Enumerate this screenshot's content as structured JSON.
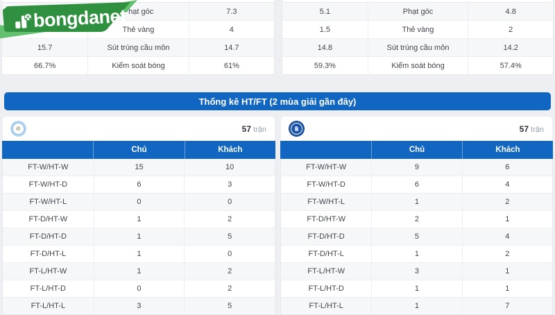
{
  "brand": {
    "name": "bongdanet"
  },
  "colors": {
    "primary_blue": "#1166c2",
    "brand_green": "#2f9140",
    "brand_green_light": "#62c06f",
    "alt_row": "#f6f7f9"
  },
  "top_stats": {
    "left_rows": [
      [
        "",
        "Phạt góc",
        "7.3"
      ],
      [
        "",
        "Thẻ vàng",
        "4"
      ],
      [
        "15.7",
        "Sút trúng cầu môn",
        "14.7"
      ],
      [
        "66.7%",
        "Kiểm soát bóng",
        "61%"
      ]
    ],
    "right_rows": [
      [
        "5.1",
        "Phạt góc",
        "4.8"
      ],
      [
        "1.5",
        "Thẻ vàng",
        "2"
      ],
      [
        "14.8",
        "Sút trúng cầu môn",
        "14.2"
      ],
      [
        "59.3%",
        "Kiểm soát bóng",
        "57.4%"
      ]
    ]
  },
  "htft": {
    "title": "Thống kê HT/FT (2 mùa giải gần đây)",
    "headers": {
      "home": "Chủ",
      "away": "Khách"
    },
    "teams": [
      {
        "badge": "manchester-city",
        "matches": "57",
        "matches_label": "trận",
        "rows": [
          [
            "FT-W/HT-W",
            "15",
            "10"
          ],
          [
            "FT-W/HT-D",
            "6",
            "3"
          ],
          [
            "FT-W/HT-L",
            "0",
            "0"
          ],
          [
            "FT-D/HT-W",
            "1",
            "2"
          ],
          [
            "FT-D/HT-D",
            "1",
            "5"
          ],
          [
            "FT-D/HT-L",
            "1",
            "0"
          ],
          [
            "FT-L/HT-W",
            "1",
            "2"
          ],
          [
            "FT-L/HT-D",
            "0",
            "2"
          ],
          [
            "FT-L/HT-L",
            "3",
            "5"
          ]
        ]
      },
      {
        "badge": "chelsea",
        "matches": "57",
        "matches_label": "trận",
        "rows": [
          [
            "FT-W/HT-W",
            "9",
            "6"
          ],
          [
            "FT-W/HT-D",
            "6",
            "4"
          ],
          [
            "FT-W/HT-L",
            "1",
            "2"
          ],
          [
            "FT-D/HT-W",
            "2",
            "1"
          ],
          [
            "FT-D/HT-D",
            "5",
            "4"
          ],
          [
            "FT-D/HT-L",
            "1",
            "2"
          ],
          [
            "FT-L/HT-W",
            "3",
            "1"
          ],
          [
            "FT-L/HT-D",
            "1",
            "1"
          ],
          [
            "FT-L/HT-L",
            "1",
            "7"
          ]
        ]
      }
    ]
  }
}
